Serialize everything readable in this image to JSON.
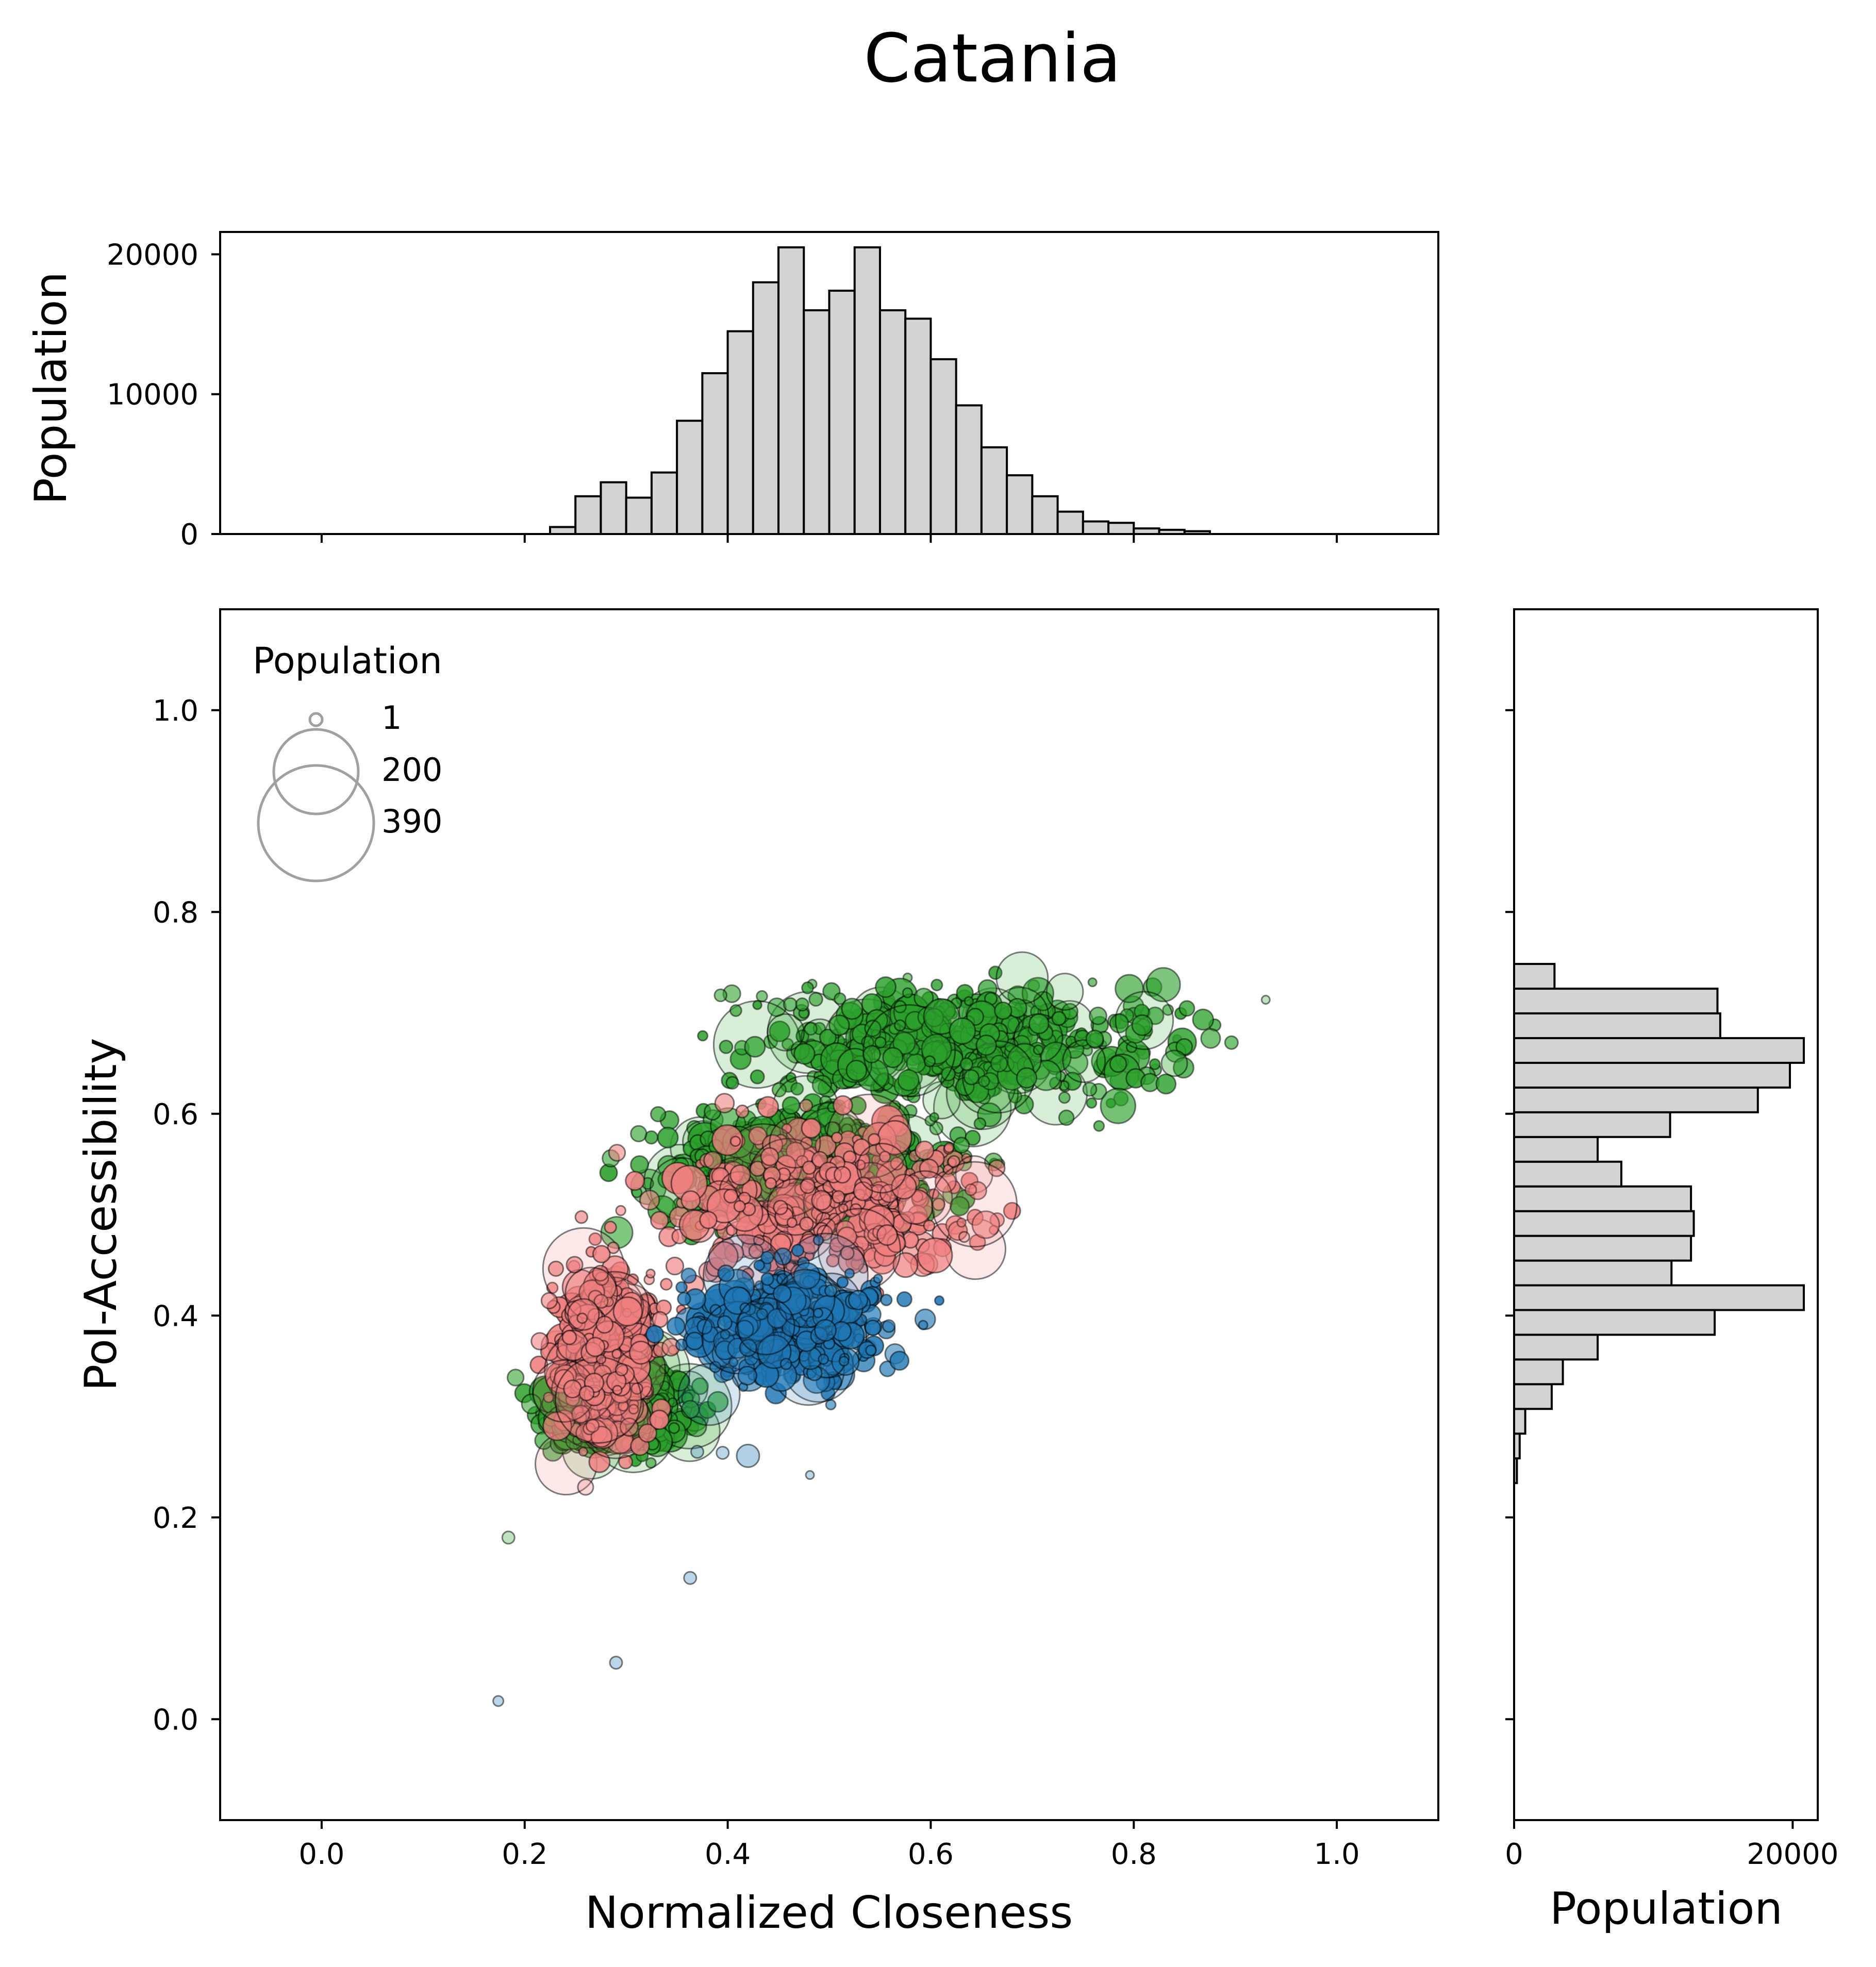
{
  "title": "Catania",
  "colors": {
    "histogram_fill": "#d3d3d3",
    "histogram_edge": "#000000",
    "cluster_green": "#2ca02c",
    "cluster_red": "#f08080",
    "cluster_blue": "#1f77b4",
    "marker_edge": "#000000",
    "legend_marker": "#a0a0a0"
  },
  "chart_data": [
    {
      "type": "scatter",
      "name": "main",
      "xlabel": "Normalized Closeness",
      "ylabel": "PoI-Accessibility",
      "xlim": [
        -0.1,
        1.1
      ],
      "ylim": [
        -0.1,
        1.1
      ],
      "xticks": [
        "0.0",
        "0.2",
        "0.4",
        "0.6",
        "0.8",
        "1.0"
      ],
      "yticks": [
        "0.0",
        "0.2",
        "0.4",
        "0.6",
        "0.8",
        "1.0"
      ],
      "size_legend": {
        "title": "Population",
        "placement": "upper-left",
        "entries": [
          {
            "label": "1",
            "value": 1
          },
          {
            "label": "200",
            "value": 200
          },
          {
            "label": "390",
            "value": 390
          }
        ]
      },
      "clusters": [
        {
          "color": "green",
          "approx_regions": [
            {
              "x_range": [
                0.38,
                0.88
              ],
              "y_range": [
                0.6,
                0.74
              ]
            },
            {
              "x_range": [
                0.3,
                0.65
              ],
              "y_range": [
                0.48,
                0.62
              ]
            },
            {
              "x_range": [
                0.21,
                0.38
              ],
              "y_range": [
                0.26,
                0.36
              ]
            }
          ]
        },
        {
          "color": "red",
          "approx_regions": [
            {
              "x_range": [
                0.22,
                0.34
              ],
              "y_range": [
                0.25,
                0.48
              ]
            },
            {
              "x_range": [
                0.33,
                0.68
              ],
              "y_range": [
                0.42,
                0.6
              ]
            }
          ]
        },
        {
          "color": "blue",
          "approx_regions": [
            {
              "x_range": [
                0.34,
                0.58
              ],
              "y_range": [
                0.32,
                0.46
              ]
            }
          ]
        }
      ],
      "outliers": [
        {
          "x": 0.174,
          "y": 0.018,
          "size": 10,
          "color": "blue"
        },
        {
          "x": 0.29,
          "y": 0.056,
          "size": 12,
          "color": "blue"
        },
        {
          "x": 0.363,
          "y": 0.14,
          "size": 12,
          "color": "blue"
        },
        {
          "x": 0.184,
          "y": 0.18,
          "size": 12,
          "color": "green"
        },
        {
          "x": 0.481,
          "y": 0.242,
          "size": 8,
          "color": "blue"
        },
        {
          "x": 0.93,
          "y": 0.713,
          "size": 8,
          "color": "green"
        },
        {
          "x": 0.84,
          "y": 0.65,
          "size": 25,
          "color": "green"
        },
        {
          "x": 0.633,
          "y": 0.478,
          "size": 10,
          "color": "red"
        },
        {
          "x": 0.37,
          "y": 0.265,
          "size": 12,
          "color": "blue"
        },
        {
          "x": 0.395,
          "y": 0.264,
          "size": 12,
          "color": "blue"
        },
        {
          "x": 0.42,
          "y": 0.261,
          "size": 22,
          "color": "blue"
        },
        {
          "x": 0.26,
          "y": 0.23,
          "size": 15,
          "color": "red"
        }
      ]
    },
    {
      "type": "bar",
      "name": "top-histogram",
      "orientation": "vertical",
      "ylabel": "Population",
      "xlim": [
        -0.1,
        1.1
      ],
      "ylim": [
        0,
        21600
      ],
      "yticks": [
        "0",
        "10000",
        "20000"
      ],
      "bin_width": 0.025,
      "bins_start": 0.225,
      "values": [
        500,
        2700,
        3700,
        2600,
        4400,
        8100,
        11500,
        14500,
        18000,
        20500,
        16000,
        17400,
        20500,
        16000,
        15400,
        12500,
        9200,
        6200,
        4200,
        2700,
        1600,
        900,
        800,
        400,
        300,
        200
      ]
    },
    {
      "type": "bar",
      "name": "right-histogram",
      "orientation": "horizontal",
      "xlabel": "Population",
      "xlim": [
        0,
        21800
      ],
      "xticks": [
        "0",
        "20000"
      ],
      "ylim": [
        -0.1,
        1.1
      ],
      "bin_width": 0.0245,
      "bins_start": 0.234,
      "values": [
        200,
        400,
        800,
        2700,
        3500,
        6000,
        14400,
        20800,
        11300,
        12700,
        12900,
        12700,
        7700,
        6000,
        11200,
        17500,
        19800,
        20800,
        14800,
        14600,
        2900
      ]
    }
  ]
}
